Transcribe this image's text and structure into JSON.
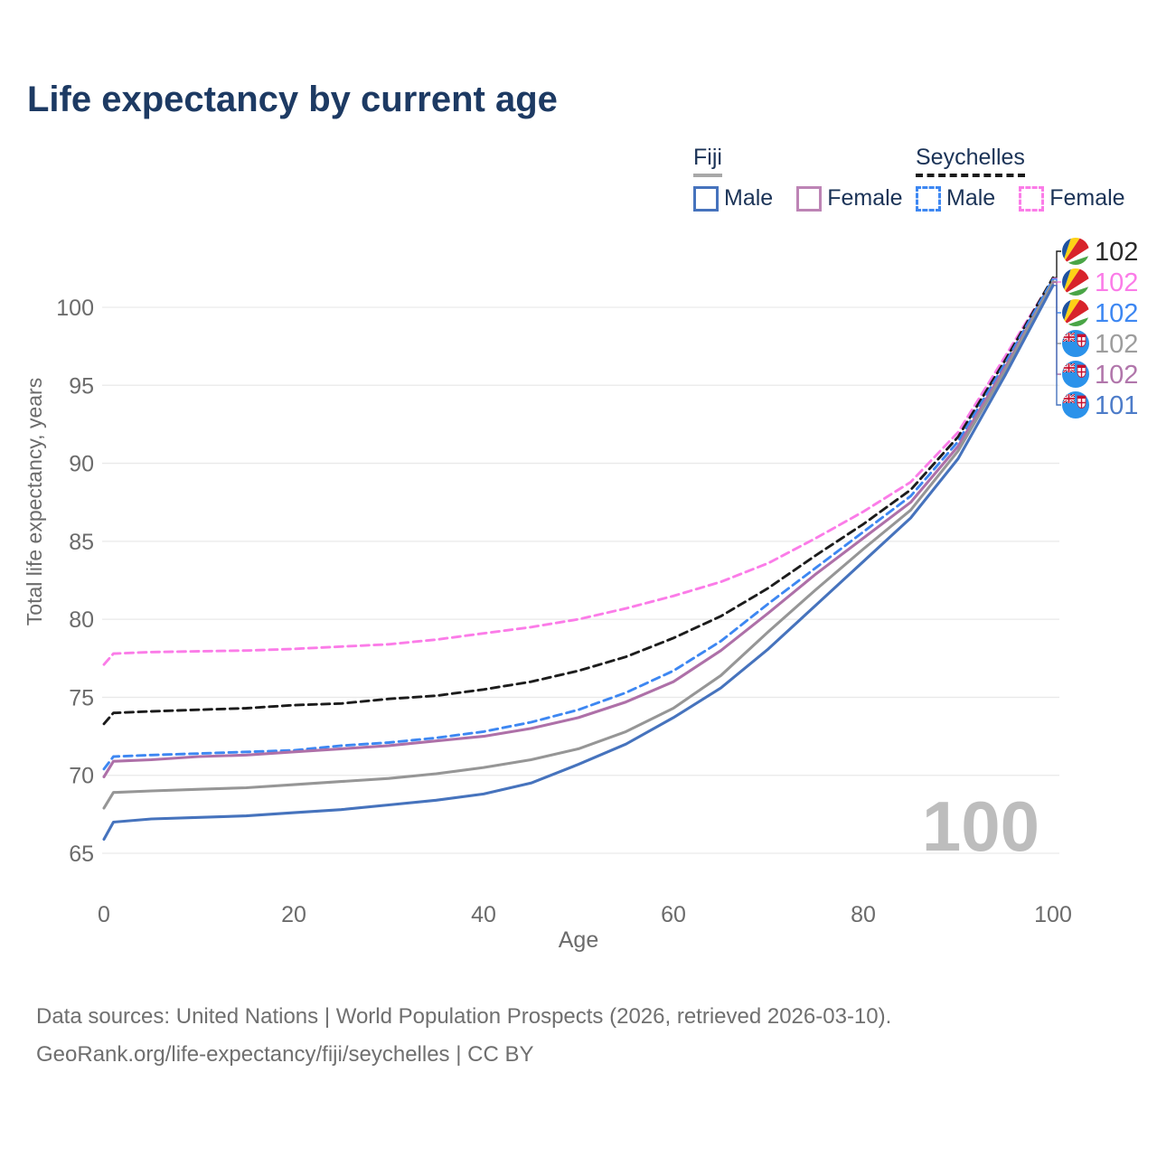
{
  "title": "Life expectancy by current age",
  "legend": {
    "groups": [
      {
        "name": "Fiji",
        "underline_style": "solid",
        "underline_color": "#a8a8a8",
        "items": [
          {
            "label": "Male",
            "color": "#4673bd",
            "dashed": false
          },
          {
            "label": "Female",
            "color": "#bd84b5",
            "dashed": false
          }
        ]
      },
      {
        "name": "Seychelles",
        "underline_style": "dashed",
        "underline_color": "#1c1c1c",
        "items": [
          {
            "label": "Male",
            "color": "#3d87f2",
            "dashed": true
          },
          {
            "label": "Female",
            "color": "#fb7ce8",
            "dashed": true
          }
        ]
      }
    ]
  },
  "watermark": "100",
  "axes": {
    "x_label": "Age",
    "y_label": "Total life expectancy, years",
    "tick_color": "#6b6b6b",
    "grid_color": "#e9e9e9"
  },
  "footer": {
    "line1": "Data sources: United Nations | World Population Prospects (2026, retrieved 2026-03-10).",
    "line2": "GeoRank.org/life-expectancy/fiji/seychelles | CC BY"
  },
  "chart_data": {
    "type": "line",
    "title": "Life expectancy by current age",
    "xlabel": "Age",
    "ylabel": "Total life expectancy, years",
    "xlim": [
      0,
      100
    ],
    "ylim": [
      65,
      102
    ],
    "xticks": [
      0,
      20,
      40,
      60,
      80,
      100
    ],
    "yticks": [
      65,
      70,
      75,
      80,
      85,
      90,
      95,
      100
    ],
    "grid": true,
    "legend_position": "top-right",
    "x": [
      0,
      1,
      5,
      10,
      15,
      20,
      25,
      30,
      35,
      40,
      45,
      50,
      55,
      60,
      65,
      70,
      75,
      80,
      85,
      90,
      95,
      100
    ],
    "series": [
      {
        "name": "Seychelles Female",
        "country": "Seychelles",
        "sex": "Female",
        "color": "#fb7ce8",
        "dashed": true,
        "flag": "seychelles",
        "end_label": "102",
        "label_color": "#fb7ce8",
        "values": [
          77.1,
          77.8,
          77.9,
          77.95,
          78.0,
          78.1,
          78.25,
          78.4,
          78.7,
          79.1,
          79.5,
          80.0,
          80.7,
          81.5,
          82.4,
          83.6,
          85.2,
          86.9,
          88.8,
          92.0,
          96.9,
          101.85
        ]
      },
      {
        "name": "Seychelles Both sexes",
        "country": "Seychelles",
        "sex": "Both",
        "color": "#1c1c1c",
        "dashed": true,
        "flag": "seychelles",
        "end_label": "102",
        "label_color": "#2b2b2b",
        "values": [
          73.3,
          74.0,
          74.1,
          74.2,
          74.3,
          74.5,
          74.6,
          74.9,
          75.1,
          75.5,
          76.0,
          76.7,
          77.6,
          78.8,
          80.2,
          82.0,
          84.1,
          86.1,
          88.3,
          91.7,
          96.65,
          101.9
        ]
      },
      {
        "name": "Seychelles Male",
        "country": "Seychelles",
        "sex": "Male",
        "color": "#3d87f2",
        "dashed": true,
        "flag": "seychelles",
        "end_label": "102",
        "label_color": "#3d87f2",
        "values": [
          70.4,
          71.2,
          71.3,
          71.4,
          71.5,
          71.6,
          71.9,
          72.1,
          72.4,
          72.8,
          73.4,
          74.2,
          75.3,
          76.7,
          78.6,
          81.0,
          83.3,
          85.6,
          87.9,
          91.4,
          96.45,
          101.8
        ]
      },
      {
        "name": "Fiji Female",
        "country": "Fiji",
        "sex": "Female",
        "color": "#ae70a8",
        "dashed": false,
        "flag": "fiji",
        "end_label": "102",
        "label_color": "#b176ab",
        "values": [
          69.9,
          70.9,
          71.0,
          71.2,
          71.3,
          71.5,
          71.7,
          71.9,
          72.2,
          72.5,
          73.0,
          73.7,
          74.7,
          76.0,
          78.0,
          80.4,
          82.9,
          85.2,
          87.5,
          91.1,
          96.2,
          101.6
        ]
      },
      {
        "name": "Fiji Both sexes",
        "country": "Fiji",
        "sex": "Both",
        "color": "#969696",
        "dashed": false,
        "flag": "fiji",
        "end_label": "102",
        "label_color": "#9d9d9d",
        "values": [
          67.9,
          68.9,
          69.0,
          69.1,
          69.2,
          69.4,
          69.6,
          69.8,
          70.1,
          70.5,
          71.0,
          71.7,
          72.8,
          74.3,
          76.4,
          79.2,
          81.9,
          84.5,
          87.0,
          90.8,
          96.0,
          101.65
        ]
      },
      {
        "name": "Fiji Male",
        "country": "Fiji",
        "sex": "Male",
        "color": "#4673bd",
        "dashed": false,
        "flag": "fiji",
        "end_label": "101",
        "label_color": "#4d7cc9",
        "values": [
          65.9,
          67.0,
          67.2,
          67.3,
          67.4,
          67.6,
          67.8,
          68.1,
          68.4,
          68.8,
          69.5,
          70.7,
          72.0,
          73.7,
          75.6,
          78.1,
          80.9,
          83.7,
          86.5,
          90.3,
          95.7,
          101.4
        ]
      }
    ]
  }
}
